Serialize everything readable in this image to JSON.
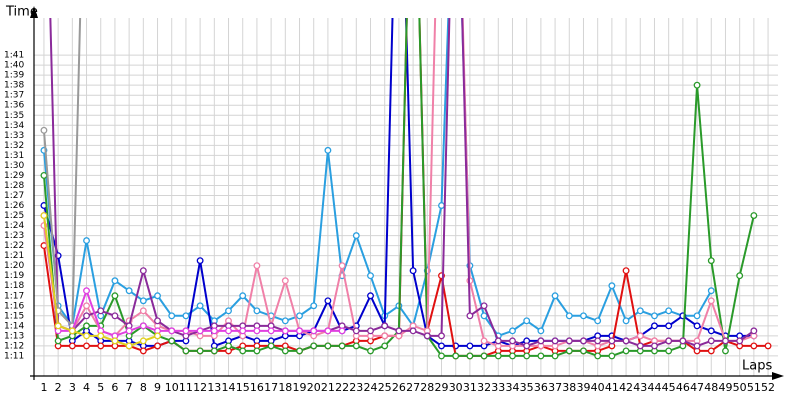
{
  "chart_data": {
    "type": "line",
    "y_label": "Time",
    "x_label": "Laps",
    "x": [
      1,
      2,
      3,
      4,
      5,
      6,
      7,
      8,
      9,
      10,
      11,
      12,
      13,
      14,
      15,
      16,
      17,
      18,
      19,
      20,
      21,
      22,
      23,
      24,
      25,
      26,
      27,
      28,
      29,
      30,
      31,
      32,
      33,
      34,
      35,
      36,
      37,
      38,
      39,
      40,
      41,
      42,
      43,
      44,
      45,
      46,
      47,
      48,
      49,
      50,
      51,
      52
    ],
    "xlim": [
      0.3,
      52.7
    ],
    "xticks": [
      1,
      2,
      3,
      4,
      5,
      6,
      7,
      8,
      9,
      10,
      11,
      12,
      13,
      14,
      15,
      16,
      17,
      18,
      19,
      20,
      21,
      22,
      23,
      24,
      25,
      26,
      27,
      28,
      29,
      30,
      31,
      32,
      33,
      34,
      35,
      36,
      37,
      38,
      39,
      40,
      41,
      42,
      43,
      44,
      45,
      46,
      47,
      48,
      49,
      50,
      51,
      52
    ],
    "ylim": [
      68.1,
      104.7
    ],
    "yticks": [
      {
        "value": 71,
        "label": "1:11"
      },
      {
        "value": 72,
        "label": "1:12"
      },
      {
        "value": 73,
        "label": "1:13"
      },
      {
        "value": 74,
        "label": "1:14"
      },
      {
        "value": 75,
        "label": "1:15"
      },
      {
        "value": 76,
        "label": "1:16"
      },
      {
        "value": 77,
        "label": "1:17"
      },
      {
        "value": 78,
        "label": "1:18"
      },
      {
        "value": 79,
        "label": "1:19"
      },
      {
        "value": 80,
        "label": "1:20"
      },
      {
        "value": 81,
        "label": "1:21"
      },
      {
        "value": 82,
        "label": "1:22"
      },
      {
        "value": 83,
        "label": "1:23"
      },
      {
        "value": 84,
        "label": "1:24"
      },
      {
        "value": 85,
        "label": "1:25"
      },
      {
        "value": 86,
        "label": "1:26"
      },
      {
        "value": 87,
        "label": "1:27"
      },
      {
        "value": 88,
        "label": "1:28"
      },
      {
        "value": 89,
        "label": "1:29"
      },
      {
        "value": 90,
        "label": "1:30"
      },
      {
        "value": 91,
        "label": "1:31"
      },
      {
        "value": 92,
        "label": "1:32"
      },
      {
        "value": 93,
        "label": "1:33"
      },
      {
        "value": 94,
        "label": "1:34"
      },
      {
        "value": 95,
        "label": "1:35"
      },
      {
        "value": 96,
        "label": "1:36"
      },
      {
        "value": 97,
        "label": "1:37"
      },
      {
        "value": 98,
        "label": "1:38"
      },
      {
        "value": 99,
        "label": "1:39"
      },
      {
        "value": 100,
        "label": "1:40"
      },
      {
        "value": 101,
        "label": "1:41"
      }
    ],
    "grid": true,
    "series": [
      {
        "color": "#2a9fe0",
        "values": [
          91.5,
          76,
          74,
          82.5,
          75,
          78.5,
          77.5,
          76.5,
          77,
          75,
          75,
          76,
          74.5,
          75.5,
          77,
          75.5,
          75,
          74.5,
          75,
          76,
          91.5,
          79,
          83,
          79,
          75,
          76,
          74,
          79.5,
          86,
          125,
          80,
          75,
          73,
          73.5,
          74.5,
          73.5,
          77,
          75,
          75,
          74.5,
          78,
          74.5,
          75.5,
          75,
          75.5,
          75,
          75,
          77.5,
          null,
          null,
          null,
          null
        ]
      },
      {
        "color": "#0000cc",
        "values": [
          86,
          81,
          72.5,
          73.5,
          72.5,
          72.5,
          72.5,
          72,
          72,
          72.5,
          72.5,
          80.5,
          72,
          72.5,
          73,
          72.5,
          72.5,
          73,
          73,
          73.5,
          76.5,
          73.5,
          74,
          77,
          74,
          130,
          79.5,
          73,
          72,
          72,
          72,
          72,
          72.5,
          72,
          72.5,
          72.5,
          72.5,
          72.5,
          72.5,
          73,
          73,
          72.5,
          73,
          74,
          74,
          75,
          74,
          73.5,
          73,
          73,
          73,
          null
        ]
      },
      {
        "color": "#e01010",
        "values": [
          82,
          72,
          72,
          72,
          72,
          72,
          72,
          71.5,
          72,
          72.5,
          71.5,
          71.5,
          71.5,
          71.5,
          72,
          72,
          72,
          72,
          71.5,
          72,
          72,
          72,
          72.5,
          72.5,
          73,
          73,
          130,
          73.5,
          79,
          71,
          71,
          71,
          71.5,
          71.5,
          71.5,
          72,
          71.5,
          71.5,
          71.5,
          71.5,
          72,
          79.5,
          72,
          72.5,
          72.5,
          72.5,
          71.5,
          71.5,
          72.5,
          72,
          72,
          72
        ]
      },
      {
        "color": "#2a9a2a",
        "values": [
          89,
          72.5,
          73,
          74,
          74,
          77,
          73,
          74,
          73,
          72.5,
          71.5,
          71.5,
          71.5,
          72,
          71.5,
          71.5,
          72,
          71.5,
          71.5,
          72,
          72,
          72,
          72,
          71.5,
          72,
          73.5,
          130,
          73,
          71,
          71,
          71,
          71,
          71,
          71,
          71,
          71,
          71,
          71.5,
          71.5,
          71,
          71,
          71.5,
          71.5,
          71.5,
          71.5,
          72,
          98,
          80.5,
          71.5,
          79,
          85,
          null
        ]
      },
      {
        "color": "#f080a8",
        "values": [
          84,
          74,
          73.5,
          76,
          73.5,
          73,
          74.5,
          75.5,
          74,
          73.5,
          73.5,
          73,
          73,
          74.5,
          73,
          80,
          74,
          78.5,
          73.5,
          73,
          73.5,
          80,
          73,
          73,
          73,
          73,
          74,
          73.5,
          130,
          130,
          78.5,
          72.5,
          72,
          72,
          72,
          72,
          72,
          72.5,
          72.5,
          72,
          72.5,
          72.5,
          73,
          72.5,
          72.5,
          72.5,
          72.5,
          76.5,
          72.5,
          72.5,
          73,
          null
        ]
      },
      {
        "color": "#8a2a9a",
        "values": [
          130,
          74,
          73.5,
          75,
          75.5,
          75,
          74,
          79.5,
          74.5,
          73.5,
          73,
          73.5,
          74,
          74,
          74,
          74,
          74,
          73.5,
          73.5,
          73.5,
          73.5,
          74,
          73.5,
          73.5,
          74,
          73.5,
          73.5,
          73,
          73,
          130,
          75,
          76,
          72.5,
          72.5,
          72,
          72.5,
          72.5,
          72.5,
          72.5,
          72.5,
          72.5,
          72.5,
          72,
          72,
          72.5,
          72.5,
          72,
          72.5,
          72.5,
          72.5,
          73.5,
          null
        ]
      },
      {
        "color": "#999999",
        "values": [
          93.5,
          75.5,
          74,
          130,
          null,
          null,
          null,
          null,
          null,
          null,
          null,
          null,
          null,
          null,
          null,
          null,
          null,
          null,
          null,
          null,
          null,
          null,
          null,
          null,
          null,
          null,
          null,
          null,
          null,
          null,
          null,
          null,
          null,
          null,
          null,
          null,
          null,
          null,
          null,
          null,
          null,
          null,
          null,
          null,
          null,
          null,
          null,
          null,
          null,
          null,
          null,
          null
        ]
      },
      {
        "color": "#e040e0",
        "values": [
          85,
          73.5,
          73.5,
          77.5,
          73.5,
          73,
          73.5,
          74,
          73.5,
          73.5,
          73.5,
          73.5,
          73.5,
          73.5,
          73.5,
          73.5,
          73.5,
          73.5,
          73.5,
          73.5,
          73.5,
          73.5,
          null,
          null,
          null,
          null,
          null,
          null,
          null,
          null,
          null,
          null,
          null,
          null,
          null,
          null,
          null,
          null,
          null,
          null,
          null,
          null,
          null,
          null,
          null,
          null,
          null,
          null,
          null,
          null,
          null,
          null
        ]
      },
      {
        "color": "#e0d020",
        "values": [
          85,
          74,
          73.5,
          73,
          73,
          72.5,
          72,
          72.5,
          73,
          null,
          null,
          null,
          null,
          null,
          null,
          null,
          null,
          null,
          null,
          null,
          null,
          null,
          null,
          null,
          null,
          null,
          null,
          null,
          null,
          null,
          null,
          null,
          null,
          null,
          null,
          null,
          null,
          null,
          null,
          null,
          null,
          null,
          null,
          null,
          null,
          null,
          null,
          null,
          null,
          null,
          null,
          null
        ]
      }
    ]
  }
}
